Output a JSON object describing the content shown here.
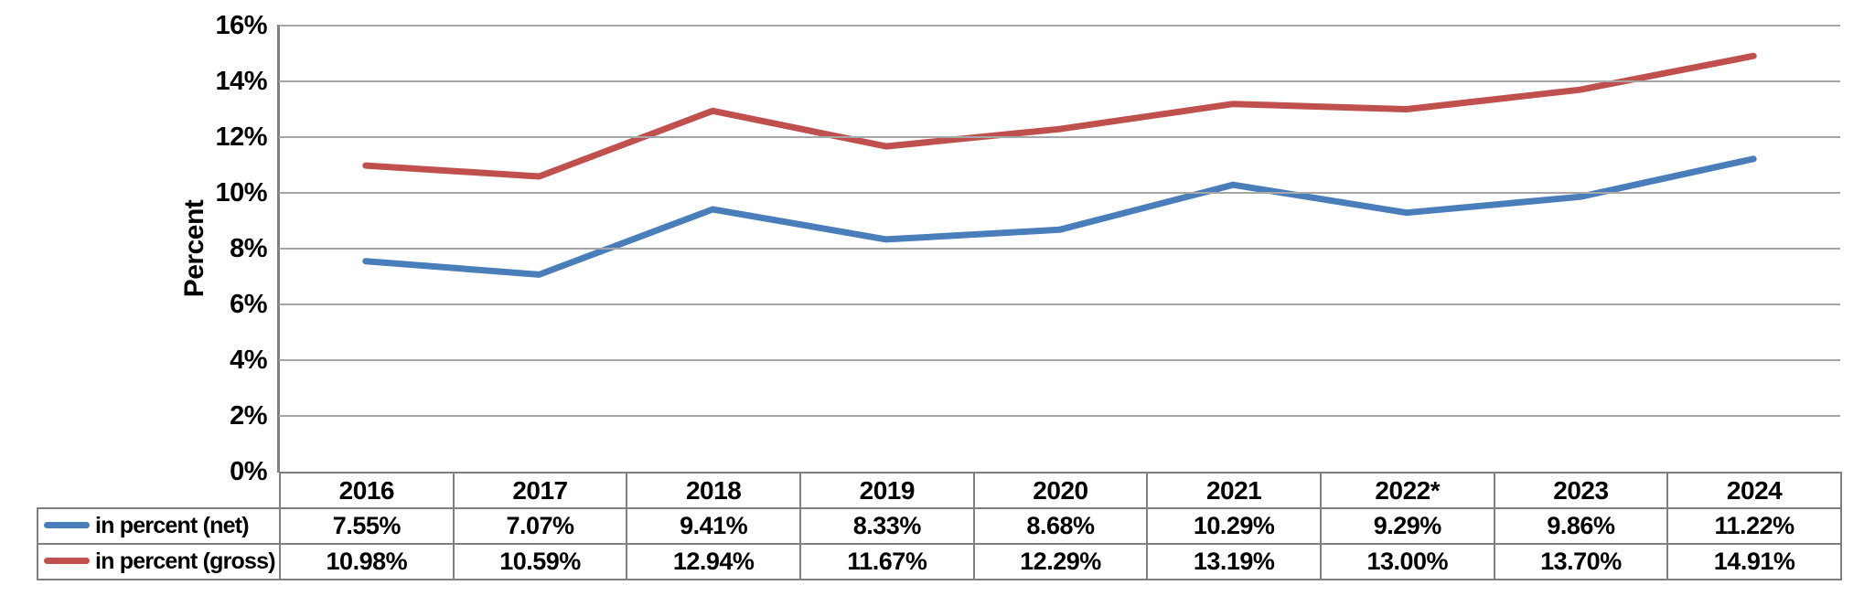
{
  "chart_data": {
    "type": "line",
    "title": "",
    "ylabel": "Percent",
    "xlabel": "",
    "categories": [
      "2016",
      "2017",
      "2018",
      "2019",
      "2020",
      "2021",
      "2022*",
      "2023",
      "2024"
    ],
    "series": [
      {
        "name": "in percent (net)",
        "color": "#4A7EBB",
        "values": [
          7.55,
          7.07,
          9.41,
          8.33,
          8.68,
          10.29,
          9.29,
          9.86,
          11.22
        ],
        "display_values": [
          "7.55%",
          "7.07%",
          "9.41%",
          "8.33%",
          "8.68%",
          "10.29%",
          "9.29%",
          "9.86%",
          "11.22%"
        ]
      },
      {
        "name": "in percent (gross)",
        "color": "#C0504D",
        "values": [
          10.98,
          10.59,
          12.94,
          11.67,
          12.29,
          13.19,
          13.0,
          13.7,
          14.91
        ],
        "display_values": [
          "10.98%",
          "10.59%",
          "12.94%",
          "11.67%",
          "12.29%",
          "13.19%",
          "13.00%",
          "13.70%",
          "14.91%"
        ]
      }
    ],
    "ylim": [
      0,
      16
    ],
    "ytick_labels": [
      "0%",
      "2%",
      "4%",
      "6%",
      "8%",
      "10%",
      "12%",
      "14%",
      "16%"
    ],
    "grid": true,
    "legend_position": "table-left",
    "colors": {
      "grid": "#A6A6A6",
      "axis": "#808080",
      "table_border": "#7F7F7F",
      "text": "#000000",
      "background": "#FFFFFF"
    }
  }
}
